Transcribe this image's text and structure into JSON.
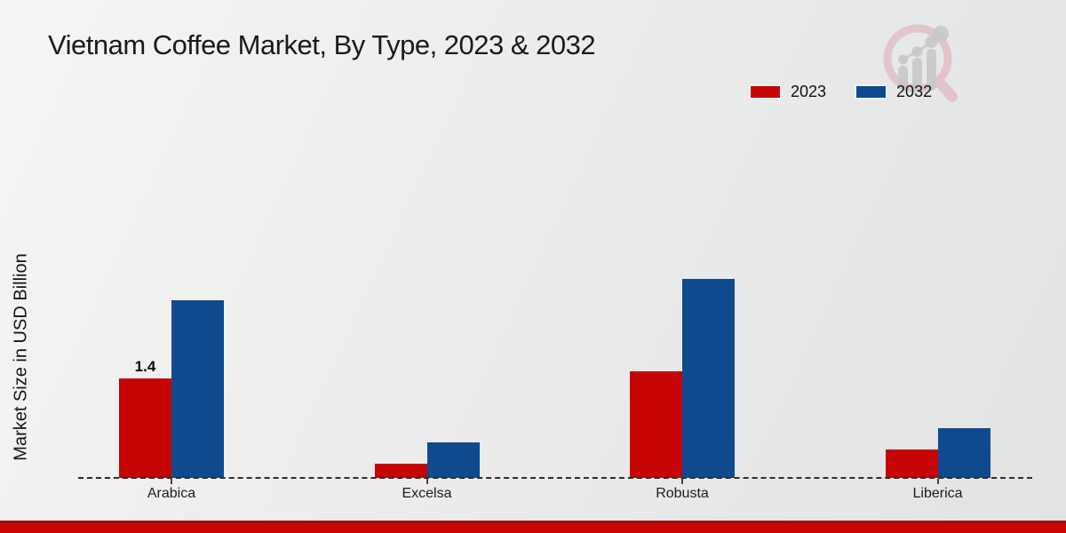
{
  "title": "Vietnam Coffee Market, By Type, 2023 & 2032",
  "y_axis_label": "Market Size in USD Billion",
  "legend": {
    "items": [
      {
        "label": "2023",
        "color": "#c70404"
      },
      {
        "label": "2032",
        "color": "#104a8e"
      }
    ]
  },
  "chart_data": {
    "type": "bar",
    "categories": [
      "Arabica",
      "Excelsa",
      "Robusta",
      "Liberica"
    ],
    "series": [
      {
        "name": "2023",
        "color": "#c70404",
        "values": [
          1.4,
          0.2,
          1.5,
          0.4
        ]
      },
      {
        "name": "2032",
        "color": "#104a8e",
        "values": [
          2.5,
          0.5,
          2.8,
          0.7
        ]
      }
    ],
    "title": "Vietnam Coffee Market, By Type, 2023 & 2032",
    "xlabel": "",
    "ylabel": "Market Size in USD Billion",
    "ylim": [
      0,
      3.3
    ],
    "grid": false,
    "legend_position": "top-right",
    "baseline_style": "dashed",
    "data_labels": [
      {
        "category": "Arabica",
        "series": "2023",
        "text": "1.4"
      }
    ]
  },
  "watermark": {
    "icon": "magnifier-growth-chart-logo"
  },
  "footer": {
    "bar_color": "#c90606"
  }
}
